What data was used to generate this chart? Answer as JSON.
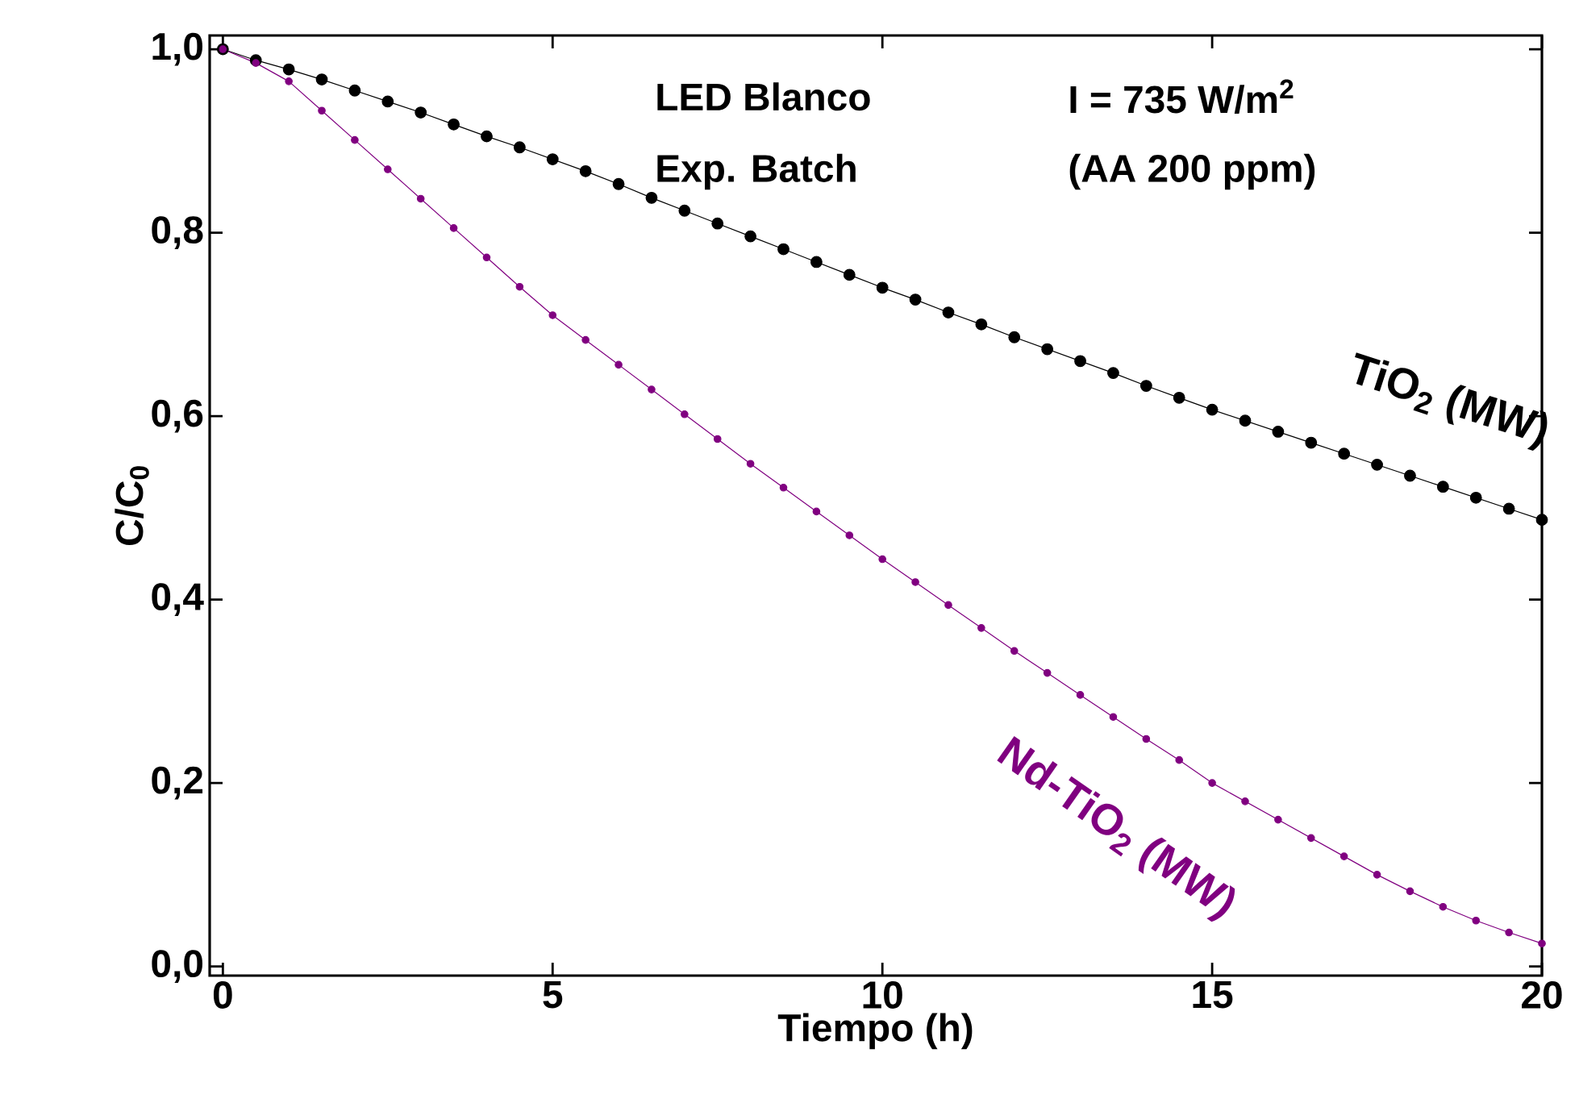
{
  "chart_data": {
    "type": "line",
    "xlabel": "Tiempo (h)",
    "ylabel": "C/C$_{0}$",
    "xlim": [
      -0.2,
      20
    ],
    "ylim": [
      -0.01,
      1.015
    ],
    "xticks": [
      0,
      5,
      10,
      15,
      20
    ],
    "yticks": [
      {
        "value": 0,
        "label": "0,0"
      },
      {
        "value": 0.2,
        "label": "0,2"
      },
      {
        "value": 0.4,
        "label": "0,4"
      },
      {
        "value": 0.6,
        "label": "0,6"
      },
      {
        "value": 0.8,
        "label": "0,8"
      },
      {
        "value": 1.0,
        "label": "1,0"
      }
    ],
    "grid": false,
    "legend": false,
    "marker": "circle",
    "line_style": "solid",
    "annotations": [
      "LED Blanco",
      "I = 735 W/m$^{2}$",
      "Exp. Batch",
      "(AA 200 ppm)"
    ],
    "x": [
      0,
      0.5,
      1,
      1.5,
      2,
      2.5,
      3,
      3.5,
      4,
      4.5,
      5,
      5.5,
      6,
      6.5,
      7,
      7.5,
      8,
      8.5,
      9,
      9.5,
      10,
      10.5,
      11,
      11.5,
      12,
      12.5,
      13,
      13.5,
      14,
      14.5,
      15,
      15.5,
      16,
      16.5,
      17,
      17.5,
      18,
      18.5,
      19,
      19.5,
      20
    ],
    "series": [
      {
        "name": "TiO$_{2}$ (MW)",
        "color": "#000000",
        "values": [
          1.0,
          0.988,
          0.978,
          0.967,
          0.955,
          0.943,
          0.931,
          0.918,
          0.905,
          0.893,
          0.88,
          0.867,
          0.853,
          0.838,
          0.824,
          0.81,
          0.796,
          0.782,
          0.768,
          0.754,
          0.74,
          0.727,
          0.713,
          0.7,
          0.686,
          0.673,
          0.66,
          0.647,
          0.633,
          0.62,
          0.607,
          0.595,
          0.583,
          0.571,
          0.559,
          0.547,
          0.535,
          0.523,
          0.511,
          0.499,
          0.487
        ]
      },
      {
        "name": "Nd-TiO$_{2}$ (MW)",
        "color": "#800080",
        "values": [
          1.0,
          0.985,
          0.965,
          0.933,
          0.901,
          0.869,
          0.837,
          0.805,
          0.773,
          0.741,
          0.71,
          0.683,
          0.656,
          0.629,
          0.602,
          0.575,
          0.548,
          0.522,
          0.496,
          0.47,
          0.444,
          0.419,
          0.394,
          0.369,
          0.344,
          0.32,
          0.296,
          0.272,
          0.248,
          0.225,
          0.2,
          0.18,
          0.16,
          0.14,
          0.12,
          0.1,
          0.082,
          0.065,
          0.05,
          0.037,
          0.025
        ]
      }
    ]
  }
}
